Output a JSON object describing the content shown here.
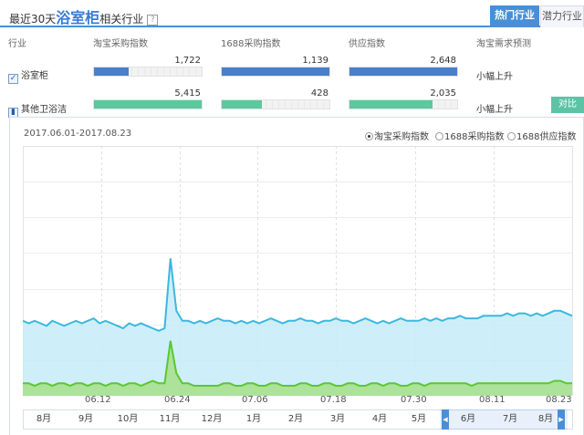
{
  "header": {
    "title_prefix": "最近30天",
    "title_emph": "浴室柜",
    "title_suffix": "相关行业",
    "help": "?",
    "tabs": [
      "热门行业",
      "潜力行业"
    ]
  },
  "table": {
    "columns": [
      "行业",
      "淘宝采购指数",
      "1688采购指数",
      "供应指数",
      "淘宝需求预测"
    ],
    "rows": [
      {
        "name": "浴室柜",
        "checked": "✓",
        "taobao": {
          "value": "1,722",
          "fill": 0.325
        },
        "alibaba": {
          "value": "1,139",
          "fill": 1.0
        },
        "supply": {
          "value": "2,648",
          "fill": 1.0
        },
        "forecast": "小幅上升",
        "color": "#4a7fc9"
      },
      {
        "name": "其他卫浴洁",
        "checked": "▮",
        "taobao": {
          "value": "5,415",
          "fill": 1.0
        },
        "alibaba": {
          "value": "428",
          "fill": 0.376
        },
        "supply": {
          "value": "2,035",
          "fill": 0.768
        },
        "forecast": "小幅上升",
        "color": "#5cc89e"
      }
    ],
    "compare_label": "对比"
  },
  "chart_panel": {
    "date_range": "2017.06.01-2017.08.23",
    "options": [
      "淘宝采购指数",
      "1688采购指数",
      "1688供应指数"
    ],
    "selected_option": "淘宝采购指数"
  },
  "chart_data": {
    "type": "area",
    "x_ticks": [
      "06.12",
      "06.24",
      "07.06",
      "07.18",
      "07.30",
      "08.11",
      "08.23"
    ],
    "ylim": [
      0,
      100
    ],
    "grid": "on",
    "series": [
      {
        "color": "#3bb8df",
        "fill": "#c6ecf8",
        "values": [
          30,
          29,
          30,
          29,
          28,
          30,
          29,
          28,
          29,
          30,
          29,
          30,
          31,
          29,
          30,
          29,
          28,
          27,
          29,
          28,
          29,
          28,
          27,
          26,
          27,
          55,
          34,
          30,
          30,
          29,
          30,
          29,
          30,
          31,
          30,
          30,
          29,
          30,
          29,
          30,
          29,
          30,
          31,
          30,
          29,
          30,
          30,
          31,
          30,
          30,
          29,
          30,
          30,
          31,
          30,
          30,
          29,
          30,
          31,
          30,
          29,
          30,
          29,
          30,
          31,
          30,
          30,
          30,
          31,
          30,
          31,
          30,
          31,
          31,
          32,
          31,
          31,
          31,
          32,
          32,
          32,
          32,
          33,
          32,
          33,
          33,
          32,
          33,
          32,
          33,
          34,
          34,
          33,
          32
        ]
      },
      {
        "color": "#5cc732",
        "fill": "#a8e08f",
        "values": [
          5,
          5,
          4,
          5,
          5,
          4,
          5,
          5,
          4,
          5,
          5,
          4,
          5,
          5,
          4,
          5,
          5,
          4,
          5,
          5,
          4,
          5,
          6,
          5,
          5,
          22,
          9,
          5,
          5,
          4,
          4,
          4,
          4,
          4,
          5,
          5,
          4,
          4,
          5,
          5,
          4,
          4,
          5,
          5,
          4,
          4,
          4,
          5,
          5,
          4,
          4,
          5,
          5,
          4,
          4,
          5,
          5,
          4,
          4,
          5,
          5,
          4,
          5,
          5,
          4,
          4,
          5,
          5,
          4,
          5,
          5,
          5,
          5,
          5,
          5,
          5,
          4,
          5,
          5,
          5,
          5,
          5,
          5,
          5,
          5,
          5,
          5,
          5,
          5,
          5,
          6,
          6,
          5,
          5
        ]
      }
    ]
  },
  "timeline": {
    "months": [
      "8月",
      "9月",
      "10月",
      "11月",
      "12月",
      "1月",
      "2月",
      "3月",
      "4月",
      "5月",
      "6月",
      "7月",
      "8月"
    ],
    "handle_left": "◀",
    "handle_right": "▶"
  },
  "colors": {
    "accent": "#4a8fd6",
    "row1_bar": "#4a7fc9",
    "row2_bar": "#5cc89e"
  }
}
